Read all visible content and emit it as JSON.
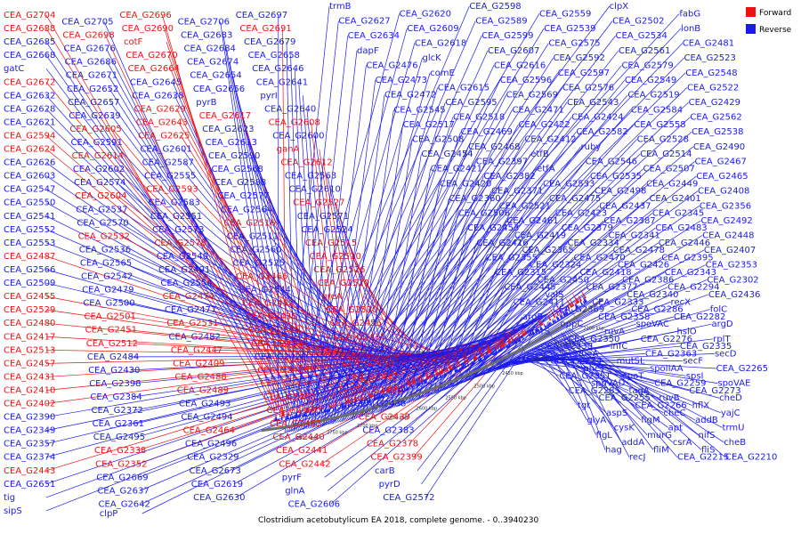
{
  "caption": "Clostridium acetobutylicum EA 2018, complete genome. - 0..3940230",
  "legend": {
    "forward": {
      "label": "Forward",
      "color": "#ee1111"
    },
    "reverse": {
      "label": "Reverse",
      "color": "#1a1aee"
    }
  },
  "ticks": [
    "2800 kbp",
    "2750 kbp",
    "2700 kbp",
    "2650 kbp",
    "2600 kbp",
    "2550 kbp",
    "2500 kbp",
    "2450 kbp",
    "2400 kbp",
    "2350 kbp",
    "2300 kbp"
  ],
  "labels": [
    {
      "t": "CEA_G2704",
      "s": "F"
    },
    {
      "t": "CEA_G2705",
      "s": "R"
    },
    {
      "t": "CEA_G2696",
      "s": "F"
    },
    {
      "t": "CEA_G2706",
      "s": "R"
    },
    {
      "t": "CEA_G2697",
      "s": "R"
    },
    {
      "t": "CEA_G2688",
      "s": "F"
    },
    {
      "t": "CEA_G2698",
      "s": "F"
    },
    {
      "t": "CEA_G2690",
      "s": "F"
    },
    {
      "t": "CEA_G2683",
      "s": "R"
    },
    {
      "t": "CEA_G2691",
      "s": "F"
    },
    {
      "t": "CEA_G2685",
      "s": "R"
    },
    {
      "t": "CEA_G2676",
      "s": "R"
    },
    {
      "t": "cotF",
      "s": "F"
    },
    {
      "t": "CEA_G2684",
      "s": "R"
    },
    {
      "t": "CEA_G2679",
      "s": "R"
    },
    {
      "t": "CEA_G2668",
      "s": "R"
    },
    {
      "t": "CEA_G2686",
      "s": "R"
    },
    {
      "t": "CEA_G2670",
      "s": "F"
    },
    {
      "t": "CEA_G2674",
      "s": "R"
    },
    {
      "t": "CEA_G2658",
      "s": "R"
    },
    {
      "t": "gatC",
      "s": "R"
    },
    {
      "t": "CEA_G2671",
      "s": "R"
    },
    {
      "t": "CEA_G2664",
      "s": "F"
    },
    {
      "t": "CEA_G2654",
      "s": "R"
    },
    {
      "t": "CEA_G2646",
      "s": "R"
    },
    {
      "t": "CEA_G2672",
      "s": "F"
    },
    {
      "t": "CEA_G2652",
      "s": "R"
    },
    {
      "t": "CEA_G2645",
      "s": "R"
    },
    {
      "t": "CEA_G2656",
      "s": "R"
    },
    {
      "t": "CEA_G2641",
      "s": "R"
    },
    {
      "t": "CEA_G2632",
      "s": "R"
    },
    {
      "t": "CEA_G2657",
      "s": "R"
    },
    {
      "t": "CEA_G2638",
      "s": "R"
    },
    {
      "t": "pyrB",
      "s": "R"
    },
    {
      "t": "pyrI",
      "s": "R"
    },
    {
      "t": "CEA_G2628",
      "s": "R"
    },
    {
      "t": "CEA_G2639",
      "s": "R"
    },
    {
      "t": "CEA_G2629",
      "s": "F"
    },
    {
      "t": "CEA_G2617",
      "s": "F"
    },
    {
      "t": "CEA_G2640",
      "s": "R"
    },
    {
      "t": "CEA_G2621",
      "s": "R"
    },
    {
      "t": "CEA_G2605",
      "s": "F"
    },
    {
      "t": "CEA_G2643",
      "s": "F"
    },
    {
      "t": "CEA_G2623",
      "s": "R"
    },
    {
      "t": "CEA_G2608",
      "s": "F"
    },
    {
      "t": "CEA_G2594",
      "s": "F"
    },
    {
      "t": "CEA_G2591",
      "s": "R"
    },
    {
      "t": "CEA_G2625",
      "s": "F"
    },
    {
      "t": "CEA_G2613",
      "s": "R"
    },
    {
      "t": "CEA_G2600",
      "s": "R"
    },
    {
      "t": "CEA_G2624",
      "s": "F"
    },
    {
      "t": "CEA_G2614",
      "s": "F"
    },
    {
      "t": "CEA_G2601",
      "s": "R"
    },
    {
      "t": "CEA_G2590",
      "s": "R"
    },
    {
      "t": "ganA",
      "s": "F"
    },
    {
      "t": "CEA_G2626",
      "s": "R"
    },
    {
      "t": "CEA_G2602",
      "s": "R"
    },
    {
      "t": "CEA_G2587",
      "s": "R"
    },
    {
      "t": "CEA_G2568",
      "s": "R"
    },
    {
      "t": "CEA_G2612",
      "s": "F"
    },
    {
      "t": "CEA_G2603",
      "s": "R"
    },
    {
      "t": "CEA_G2574",
      "s": "R"
    },
    {
      "t": "CEA_G2555",
      "s": "R"
    },
    {
      "t": "CEA_G2588",
      "s": "R"
    },
    {
      "t": "CEA_G2563",
      "s": "R"
    },
    {
      "t": "CEA_G2547",
      "s": "R"
    },
    {
      "t": "CEA_G2604",
      "s": "F"
    },
    {
      "t": "CEA_G2593",
      "s": "F"
    },
    {
      "t": "CEA_G2577",
      "s": "R"
    },
    {
      "t": "CEA_G2610",
      "s": "R"
    },
    {
      "t": "CEA_G2550",
      "s": "R"
    },
    {
      "t": "CEA_G2537",
      "s": "R"
    },
    {
      "t": "CEA_G2583",
      "s": "R"
    },
    {
      "t": "CEA_G2564",
      "s": "R"
    },
    {
      "t": "CEA_G2527",
      "s": "F"
    },
    {
      "t": "CEA_G2541",
      "s": "R"
    },
    {
      "t": "CEA_G2570",
      "s": "R"
    },
    {
      "t": "CEA_G2551",
      "s": "R"
    },
    {
      "t": "CEA_G2516",
      "s": "F"
    },
    {
      "t": "CEA_G2571",
      "s": "R"
    },
    {
      "t": "CEA_G2552",
      "s": "R"
    },
    {
      "t": "CEA_G2532",
      "s": "F"
    },
    {
      "t": "CEA_G2573",
      "s": "R"
    },
    {
      "t": "CEA_G2511",
      "s": "R"
    },
    {
      "t": "CEA_G2524",
      "s": "R"
    },
    {
      "t": "CEA_G2553",
      "s": "R"
    },
    {
      "t": "CEA_G2536",
      "s": "R"
    },
    {
      "t": "CEA_G2578",
      "s": "F"
    },
    {
      "t": "CEA_G2560",
      "s": "R"
    },
    {
      "t": "CEA_G2515",
      "s": "F"
    },
    {
      "t": "CEA_G2487",
      "s": "F"
    },
    {
      "t": "CEA_G2565",
      "s": "R"
    },
    {
      "t": "CEA_G2540",
      "s": "R"
    },
    {
      "t": "CEA_G2525",
      "s": "R"
    },
    {
      "t": "CEA_G2510",
      "s": "F"
    },
    {
      "t": "CEA_G2566",
      "s": "R"
    },
    {
      "t": "CEA_G2542",
      "s": "R"
    },
    {
      "t": "CEA_G2491",
      "s": "R"
    },
    {
      "t": "CEA_G2466",
      "s": "F"
    },
    {
      "t": "CEA_G2526",
      "s": "F"
    },
    {
      "t": "CEA_G2509",
      "s": "R"
    },
    {
      "t": "CEA_G2479",
      "s": "R"
    },
    {
      "t": "CEA_G2554",
      "s": "R"
    },
    {
      "t": "CEA_G2544",
      "s": "R"
    },
    {
      "t": "CEA_G2520",
      "s": "F"
    },
    {
      "t": "CEA_G2455",
      "s": "F"
    },
    {
      "t": "CEA_G2500",
      "s": "R"
    },
    {
      "t": "CEA_G2474",
      "s": "F"
    },
    {
      "t": "CEA_G2452",
      "s": "F"
    },
    {
      "t": "greA",
      "s": "F"
    },
    {
      "t": "CEA_G2529",
      "s": "F"
    },
    {
      "t": "CEA_G2501",
      "s": "F"
    },
    {
      "t": "CEA_G2477",
      "s": "R"
    },
    {
      "t": "CEA_G2435",
      "s": "F"
    },
    {
      "t": "CEA_G2530",
      "s": "F"
    },
    {
      "t": "CEA_G2480",
      "s": "F"
    },
    {
      "t": "CEA_G2451",
      "s": "F"
    },
    {
      "t": "CEA_G2531",
      "s": "F"
    },
    {
      "t": "CEA_G2505",
      "s": "F"
    },
    {
      "t": "CEA_G2456",
      "s": "F"
    },
    {
      "t": "CEA_G2417",
      "s": "F"
    },
    {
      "t": "CEA_G2512",
      "s": "F"
    },
    {
      "t": "CEA_G2482",
      "s": "R"
    },
    {
      "t": "CEA_G2434",
      "s": "F"
    },
    {
      "t": "CEA_G2415",
      "s": "F"
    },
    {
      "t": "CEA_G2513",
      "s": "F"
    },
    {
      "t": "CEA_G2484",
      "s": "R"
    },
    {
      "t": "CEA_G2447",
      "s": "F"
    },
    {
      "t": "CEA_G2428",
      "s": "R"
    },
    {
      "t": "CEA_G2485",
      "s": "R"
    },
    {
      "t": "CEA_G2457",
      "s": "F"
    },
    {
      "t": "CEA_G2430",
      "s": "R"
    },
    {
      "t": "CEA_G2409",
      "s": "F"
    },
    {
      "t": "CEA_G2486",
      "s": "F"
    },
    {
      "t": "CEA_G2458",
      "s": "F"
    },
    {
      "t": "CEA_G2431",
      "s": "F"
    },
    {
      "t": "CEA_G2398",
      "s": "R"
    },
    {
      "t": "CEA_G2488",
      "s": "F"
    },
    {
      "t": "CEA_G2459",
      "s": "F"
    },
    {
      "t": "CEA_G2432",
      "s": "F"
    },
    {
      "t": "CEA_G2410",
      "s": "F"
    },
    {
      "t": "CEA_G2384",
      "s": "R"
    },
    {
      "t": "CEA_G2489",
      "s": "F"
    },
    {
      "t": "CEA_G2460",
      "s": "F"
    },
    {
      "t": "CEA_G2433",
      "s": "F"
    },
    {
      "t": "CEA_G2402",
      "s": "F"
    },
    {
      "t": "CEA_G2372",
      "s": "R"
    },
    {
      "t": "CEA_G2493",
      "s": "R"
    },
    {
      "t": "CEA_G2462",
      "s": "F"
    },
    {
      "t": "CEA_G2438",
      "s": "R"
    },
    {
      "t": "CEA_G2390",
      "s": "R"
    },
    {
      "t": "CEA_G2361",
      "s": "R"
    },
    {
      "t": "CEA_G2494",
      "s": "R"
    },
    {
      "t": "CEA_G2463",
      "s": "F"
    },
    {
      "t": "CEA_G2439",
      "s": "F"
    },
    {
      "t": "CEA_G2349",
      "s": "R"
    },
    {
      "t": "CEA_G2495",
      "s": "R"
    },
    {
      "t": "CEA_G2464",
      "s": "F"
    },
    {
      "t": "CEA_G2440",
      "s": "F"
    },
    {
      "t": "CEA_G2383",
      "s": "R"
    },
    {
      "t": "CEA_G2357",
      "s": "R"
    },
    {
      "t": "CEA_G2338",
      "s": "F"
    },
    {
      "t": "CEA_G2496",
      "s": "R"
    },
    {
      "t": "CEA_G2441",
      "s": "F"
    },
    {
      "t": "CEA_G2378",
      "s": "F"
    },
    {
      "t": "CEA_G2374",
      "s": "R"
    },
    {
      "t": "CEA_G2352",
      "s": "F"
    },
    {
      "t": "CEA_G2329",
      "s": "R"
    },
    {
      "t": "CEA_G2442",
      "s": "F"
    },
    {
      "t": "CEA_G2399",
      "s": "F"
    },
    {
      "t": "CEA_G2443",
      "s": "F"
    },
    {
      "t": "CEA_G2669",
      "s": "R"
    },
    {
      "t": "CEA_G2673",
      "s": "R"
    },
    {
      "t": "pyrF",
      "s": "R"
    },
    {
      "t": "carB",
      "s": "R"
    },
    {
      "t": "CEA_G2651",
      "s": "R"
    },
    {
      "t": "CEA_G2637",
      "s": "R"
    },
    {
      "t": "CEA_G2619",
      "s": "R"
    },
    {
      "t": "glnA",
      "s": "R"
    },
    {
      "t": "pyrD",
      "s": "R"
    },
    {
      "t": "tig",
      "s": "R"
    },
    {
      "t": "CEA_G2642",
      "s": "R"
    },
    {
      "t": "CEA_G2630",
      "s": "R"
    },
    {
      "t": "CEA_G2606",
      "s": "R"
    },
    {
      "t": "CEA_G2572",
      "s": "R"
    },
    {
      "t": "sipS",
      "s": "R"
    },
    {
      "t": "clpP",
      "s": "R"
    },
    {
      "t": "trmB",
      "s": "R"
    },
    {
      "t": "CEA_G2620",
      "s": "R"
    },
    {
      "t": "CEA_G2598",
      "s": "R"
    },
    {
      "t": "CEA_G2559",
      "s": "R"
    },
    {
      "t": "clpX",
      "s": "R"
    },
    {
      "t": "fabG",
      "s": "R"
    },
    {
      "t": "CEA_G2627",
      "s": "R"
    },
    {
      "t": "CEA_G2609",
      "s": "R"
    },
    {
      "t": "CEA_G2589",
      "s": "R"
    },
    {
      "t": "CEA_G2539",
      "s": "R"
    },
    {
      "t": "CEA_G2502",
      "s": "R"
    },
    {
      "t": "lonB",
      "s": "R"
    },
    {
      "t": "CEA_G2634",
      "s": "R"
    },
    {
      "t": "CEA_G2618",
      "s": "R"
    },
    {
      "t": "CEA_G2599",
      "s": "R"
    },
    {
      "t": "CEA_G2575",
      "s": "R"
    },
    {
      "t": "CEA_G2534",
      "s": "R"
    },
    {
      "t": "CEA_G2481",
      "s": "R"
    },
    {
      "t": "dapF",
      "s": "R"
    },
    {
      "t": "glcK",
      "s": "R"
    },
    {
      "t": "CEA_G2607",
      "s": "R"
    },
    {
      "t": "CEA_G2592",
      "s": "R"
    },
    {
      "t": "CEA_G2561",
      "s": "R"
    },
    {
      "t": "CEA_G2523",
      "s": "R"
    },
    {
      "t": "CEA_G2476",
      "s": "R"
    },
    {
      "t": "comE",
      "s": "R"
    },
    {
      "t": "CEA_G2616",
      "s": "R"
    },
    {
      "t": "CEA_G2597",
      "s": "R"
    },
    {
      "t": "CEA_G2579",
      "s": "R"
    },
    {
      "t": "CEA_G2548",
      "s": "R"
    },
    {
      "t": "CEA_G2473",
      "s": "R"
    },
    {
      "t": "CEA_G2615",
      "s": "R"
    },
    {
      "t": "CEA_G2596",
      "s": "R"
    },
    {
      "t": "CEA_G2576",
      "s": "R"
    },
    {
      "t": "CEA_G2549",
      "s": "R"
    },
    {
      "t": "CEA_G2522",
      "s": "R"
    },
    {
      "t": "CEA_G2472",
      "s": "R"
    },
    {
      "t": "CEA_G2595",
      "s": "R"
    },
    {
      "t": "CEA_G2569",
      "s": "R"
    },
    {
      "t": "CEA_G2543",
      "s": "R"
    },
    {
      "t": "CEA_G2519",
      "s": "R"
    },
    {
      "t": "CEA_G2429",
      "s": "R"
    },
    {
      "t": "CEA_G2545",
      "s": "R"
    },
    {
      "t": "CEA_G2518",
      "s": "R"
    },
    {
      "t": "CEA_G2471",
      "s": "R"
    },
    {
      "t": "CEA_G2424",
      "s": "R"
    },
    {
      "t": "CEA_G2584",
      "s": "R"
    },
    {
      "t": "CEA_G2562",
      "s": "R"
    },
    {
      "t": "CEA_G2517",
      "s": "R"
    },
    {
      "t": "CEA_G2469",
      "s": "R"
    },
    {
      "t": "CEA_G2422",
      "s": "R"
    },
    {
      "t": "CEA_G2582",
      "s": "R"
    },
    {
      "t": "CEA_G2558",
      "s": "R"
    },
    {
      "t": "CEA_G2538",
      "s": "R"
    },
    {
      "t": "CEA_G2508",
      "s": "R"
    },
    {
      "t": "CEA_G2468",
      "s": "R"
    },
    {
      "t": "CEA_G2412",
      "s": "R"
    },
    {
      "t": "ruby",
      "s": "R"
    },
    {
      "t": "CEA_G2528",
      "s": "R"
    },
    {
      "t": "CEA_G2490",
      "s": "R"
    },
    {
      "t": "CEA_G2454",
      "s": "R"
    },
    {
      "t": "CEA_G2397",
      "s": "R"
    },
    {
      "t": "etfB",
      "s": "R"
    },
    {
      "t": "CEA_G2546",
      "s": "R"
    },
    {
      "t": "CEA_G2514",
      "s": "R"
    },
    {
      "t": "CEA_G2467",
      "s": "R"
    },
    {
      "t": "CEA_G2421",
      "s": "R"
    },
    {
      "t": "CEA_G2382",
      "s": "R"
    },
    {
      "t": "etfA",
      "s": "R"
    },
    {
      "t": "CEA_G2535",
      "s": "R"
    },
    {
      "t": "CEA_G2507",
      "s": "R"
    },
    {
      "t": "CEA_G2465",
      "s": "R"
    },
    {
      "t": "CEA_G2420",
      "s": "R"
    },
    {
      "t": "CEA_G2371",
      "s": "R"
    },
    {
      "t": "CEA_G2533",
      "s": "R"
    },
    {
      "t": "CEA_G2498",
      "s": "R"
    },
    {
      "t": "CEA_G2449",
      "s": "R"
    },
    {
      "t": "CEA_G2408",
      "s": "R"
    },
    {
      "t": "CEA_G2360",
      "s": "R"
    },
    {
      "t": "CEA_G2521",
      "s": "R"
    },
    {
      "t": "CEA_G2475",
      "s": "R"
    },
    {
      "t": "CEA_G2437",
      "s": "R"
    },
    {
      "t": "CEA_G2401",
      "s": "R"
    },
    {
      "t": "CEA_G2356",
      "s": "R"
    },
    {
      "t": "CEA_G2506",
      "s": "R"
    },
    {
      "t": "CEA_G2461",
      "s": "R"
    },
    {
      "t": "CEA_G2423",
      "s": "R"
    },
    {
      "t": "CEA_G2387",
      "s": "R"
    },
    {
      "t": "CEA_G2345",
      "s": "R"
    },
    {
      "t": "CEA_G2492",
      "s": "R"
    },
    {
      "t": "CEA_G2453",
      "s": "R"
    },
    {
      "t": "CEA_G2419",
      "s": "R"
    },
    {
      "t": "CEA_G2379",
      "s": "R"
    },
    {
      "t": "CEA_G2341",
      "s": "R"
    },
    {
      "t": "CEA_G2483",
      "s": "R"
    },
    {
      "t": "CEA_G2448",
      "s": "R"
    },
    {
      "t": "CEA_G2416",
      "s": "R"
    },
    {
      "t": "CEA_G2365",
      "s": "R"
    },
    {
      "t": "CEA_G2334",
      "s": "R"
    },
    {
      "t": "CEA_G2478",
      "s": "R"
    },
    {
      "t": "CEA_G2446",
      "s": "R"
    },
    {
      "t": "CEA_G2407",
      "s": "R"
    },
    {
      "t": "CEA_G2355",
      "s": "R"
    },
    {
      "t": "CEA_G2324",
      "s": "R"
    },
    {
      "t": "CEA_G2470",
      "s": "R"
    },
    {
      "t": "CEA_G2426",
      "s": "R"
    },
    {
      "t": "CEA_G2395",
      "s": "R"
    },
    {
      "t": "CEA_G2353",
      "s": "R"
    },
    {
      "t": "CEA_G2315",
      "s": "R"
    },
    {
      "t": "CEA_G2450",
      "s": "R"
    },
    {
      "t": "CEA_G2418",
      "s": "R"
    },
    {
      "t": "CEA_G2386",
      "s": "R"
    },
    {
      "t": "CEA_G2343",
      "s": "R"
    },
    {
      "t": "CEA_G2302",
      "s": "R"
    },
    {
      "t": "CEA_G2445",
      "s": "R"
    },
    {
      "t": "valS",
      "s": "R"
    },
    {
      "t": "CEA_G2377",
      "s": "R"
    },
    {
      "t": "CEA_G2340",
      "s": "R"
    },
    {
      "t": "CEA_G2294",
      "s": "R"
    },
    {
      "t": "CEA_G2436",
      "s": "R"
    },
    {
      "t": "CEA_G2411",
      "s": "R"
    },
    {
      "t": "CEA_G2369",
      "s": "R"
    },
    {
      "t": "CEA_G2333",
      "s": "R"
    },
    {
      "t": "CEA_G2286",
      "s": "R"
    },
    {
      "t": "recX",
      "s": "R"
    },
    {
      "t": "folC",
      "s": "R"
    },
    {
      "t": "argB",
      "s": "R"
    },
    {
      "t": "oppC",
      "s": "R"
    },
    {
      "t": "CEA_G2358",
      "s": "R"
    },
    {
      "t": "spoVAC",
      "s": "R"
    },
    {
      "t": "CEA_G2282",
      "s": "R"
    },
    {
      "t": "argD",
      "s": "R"
    },
    {
      "t": "thrS",
      "s": "R"
    },
    {
      "t": "CEA_G2350",
      "s": "R"
    },
    {
      "t": "ruvA",
      "s": "R"
    },
    {
      "t": "CEA_G2276",
      "s": "R"
    },
    {
      "t": "hslO",
      "s": "R"
    },
    {
      "t": "rplT",
      "s": "R"
    },
    {
      "t": "CEA_G2339",
      "s": "R"
    },
    {
      "t": "queA",
      "s": "R"
    },
    {
      "t": "infC",
      "s": "R"
    },
    {
      "t": "CEA_G2363",
      "s": "R"
    },
    {
      "t": "CEA_G2335",
      "s": "R"
    },
    {
      "t": "secD",
      "s": "R"
    },
    {
      "t": "CEA_G2274",
      "s": "R"
    },
    {
      "t": "pheT",
      "s": "R"
    },
    {
      "t": "mutSL",
      "s": "R"
    },
    {
      "t": "spoIIAA",
      "s": "R"
    },
    {
      "t": "secF",
      "s": "R"
    },
    {
      "t": "CEA_G2265",
      "s": "R"
    },
    {
      "t": "CEA_G2351",
      "s": "R"
    },
    {
      "t": "spoVAD",
      "s": "R"
    },
    {
      "t": "spoT",
      "s": "R"
    },
    {
      "t": "CEA_G2259",
      "s": "R"
    },
    {
      "t": "spsI",
      "s": "R"
    },
    {
      "t": "spoVAE",
      "s": "R"
    },
    {
      "t": "CEA_G2285",
      "s": "R"
    },
    {
      "t": "CEA_G2255",
      "s": "R"
    },
    {
      "t": "tagA",
      "s": "R"
    },
    {
      "t": "ruvB",
      "s": "R"
    },
    {
      "t": "CEA_G2273",
      "s": "R"
    },
    {
      "t": "cheD",
      "s": "R"
    },
    {
      "t": "tgt",
      "s": "R"
    },
    {
      "t": "aspS",
      "s": "R"
    },
    {
      "t": "CEA_G2266",
      "s": "R"
    },
    {
      "t": "cheC",
      "s": "R"
    },
    {
      "t": "hflX",
      "s": "R"
    },
    {
      "t": "yajC",
      "s": "R"
    },
    {
      "t": "glyA",
      "s": "R"
    },
    {
      "t": "cysK",
      "s": "R"
    },
    {
      "t": "flgM",
      "s": "R"
    },
    {
      "t": "apt",
      "s": "R"
    },
    {
      "t": "addB",
      "s": "R"
    },
    {
      "t": "trmU",
      "s": "R"
    },
    {
      "t": "flgL",
      "s": "R"
    },
    {
      "t": "addA",
      "s": "R"
    },
    {
      "t": "murG",
      "s": "R"
    },
    {
      "t": "csrA",
      "s": "R"
    },
    {
      "t": "nifS",
      "s": "R"
    },
    {
      "t": "cheB",
      "s": "R"
    },
    {
      "t": "hag",
      "s": "R"
    },
    {
      "t": "recJ",
      "s": "R"
    },
    {
      "t": "fliM",
      "s": "R"
    },
    {
      "t": "CEA_G2215",
      "s": "R"
    },
    {
      "t": "fliS",
      "s": "R"
    },
    {
      "t": "CEA_G2210",
      "s": "R"
    }
  ]
}
